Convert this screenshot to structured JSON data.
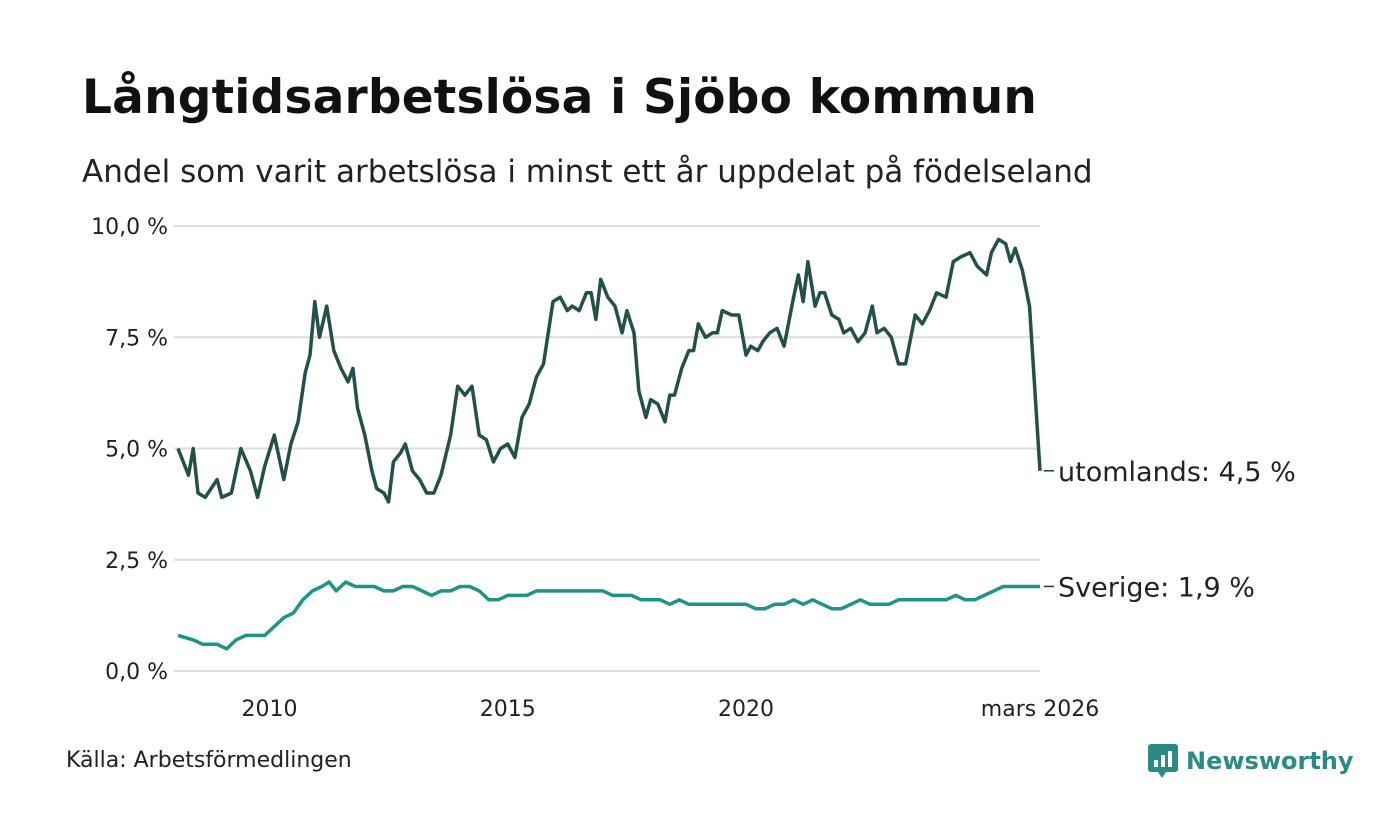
{
  "title": "Långtidsarbetslösa i Sjöbo kommun",
  "subtitle": "Andel som varit arbetslösa i minst ett år uppdelat på födelseland",
  "source": "Källa: Arbetsförmedlingen",
  "brand": "Newsworthy",
  "colors": {
    "utomlands": "#24504a",
    "sverige": "#1e9487",
    "grid": "#dcdcdc",
    "brand": "#2b8a83"
  },
  "chart_data": {
    "type": "line",
    "title": "Långtidsarbetslösa i Sjöbo kommun",
    "ylim": [
      0,
      10
    ],
    "yticks": [
      {
        "value": 10,
        "label": "10,0 %"
      },
      {
        "value": 7.5,
        "label": "7,5 %"
      },
      {
        "value": 5,
        "label": "5,0 %"
      },
      {
        "value": 2.5,
        "label": "2,5 %"
      },
      {
        "value": 0,
        "label": "0,0 %"
      }
    ],
    "xlim": [
      2008.08,
      2026.17
    ],
    "xticks": [
      {
        "value": 2010,
        "label": "2010"
      },
      {
        "value": 2015,
        "label": "2015"
      },
      {
        "value": 2020,
        "label": "2020"
      },
      {
        "value": 2026.17,
        "label": "mars 2026"
      }
    ],
    "grid": true,
    "series": [
      {
        "name": "utomlands",
        "end_label": "utomlands: 4,5 %",
        "points": [
          [
            2008.08,
            5.0
          ],
          [
            2008.3,
            4.4
          ],
          [
            2008.4,
            5.0
          ],
          [
            2008.5,
            4.0
          ],
          [
            2008.65,
            3.9
          ],
          [
            2008.9,
            4.3
          ],
          [
            2009.0,
            3.9
          ],
          [
            2009.2,
            4.0
          ],
          [
            2009.4,
            5.0
          ],
          [
            2009.6,
            4.5
          ],
          [
            2009.75,
            3.9
          ],
          [
            2009.9,
            4.6
          ],
          [
            2010.1,
            5.3
          ],
          [
            2010.3,
            4.3
          ],
          [
            2010.45,
            5.1
          ],
          [
            2010.6,
            5.6
          ],
          [
            2010.75,
            6.7
          ],
          [
            2010.85,
            7.1
          ],
          [
            2010.95,
            8.3
          ],
          [
            2011.05,
            7.5
          ],
          [
            2011.2,
            8.2
          ],
          [
            2011.35,
            7.2
          ],
          [
            2011.5,
            6.8
          ],
          [
            2011.65,
            6.5
          ],
          [
            2011.75,
            6.8
          ],
          [
            2011.85,
            5.9
          ],
          [
            2012.0,
            5.3
          ],
          [
            2012.15,
            4.5
          ],
          [
            2012.25,
            4.1
          ],
          [
            2012.4,
            4.0
          ],
          [
            2012.5,
            3.8
          ],
          [
            2012.6,
            4.7
          ],
          [
            2012.75,
            4.9
          ],
          [
            2012.85,
            5.1
          ],
          [
            2013.0,
            4.5
          ],
          [
            2013.15,
            4.3
          ],
          [
            2013.3,
            4.0
          ],
          [
            2013.45,
            4.0
          ],
          [
            2013.6,
            4.4
          ],
          [
            2013.8,
            5.3
          ],
          [
            2013.95,
            6.4
          ],
          [
            2014.1,
            6.2
          ],
          [
            2014.25,
            6.4
          ],
          [
            2014.4,
            5.3
          ],
          [
            2014.55,
            5.2
          ],
          [
            2014.7,
            4.7
          ],
          [
            2014.85,
            5.0
          ],
          [
            2015.0,
            5.1
          ],
          [
            2015.15,
            4.8
          ],
          [
            2015.3,
            5.7
          ],
          [
            2015.45,
            6.0
          ],
          [
            2015.6,
            6.6
          ],
          [
            2015.75,
            6.9
          ],
          [
            2015.95,
            8.3
          ],
          [
            2016.1,
            8.4
          ],
          [
            2016.25,
            8.1
          ],
          [
            2016.35,
            8.2
          ],
          [
            2016.5,
            8.1
          ],
          [
            2016.65,
            8.5
          ],
          [
            2016.75,
            8.5
          ],
          [
            2016.85,
            7.9
          ],
          [
            2016.95,
            8.8
          ],
          [
            2017.1,
            8.4
          ],
          [
            2017.25,
            8.2
          ],
          [
            2017.4,
            7.6
          ],
          [
            2017.5,
            8.1
          ],
          [
            2017.65,
            7.6
          ],
          [
            2017.75,
            6.3
          ],
          [
            2017.9,
            5.7
          ],
          [
            2018.0,
            6.1
          ],
          [
            2018.15,
            6.0
          ],
          [
            2018.3,
            5.6
          ],
          [
            2018.4,
            6.2
          ],
          [
            2018.5,
            6.2
          ],
          [
            2018.65,
            6.8
          ],
          [
            2018.8,
            7.2
          ],
          [
            2018.9,
            7.2
          ],
          [
            2019.0,
            7.8
          ],
          [
            2019.15,
            7.5
          ],
          [
            2019.3,
            7.6
          ],
          [
            2019.4,
            7.6
          ],
          [
            2019.5,
            8.1
          ],
          [
            2019.7,
            8.0
          ],
          [
            2019.85,
            8.0
          ],
          [
            2020.0,
            7.1
          ],
          [
            2020.1,
            7.3
          ],
          [
            2020.25,
            7.2
          ],
          [
            2020.35,
            7.4
          ],
          [
            2020.5,
            7.6
          ],
          [
            2020.65,
            7.7
          ],
          [
            2020.8,
            7.3
          ],
          [
            2021.0,
            8.4
          ],
          [
            2021.1,
            8.9
          ],
          [
            2021.2,
            8.3
          ],
          [
            2021.3,
            9.2
          ],
          [
            2021.45,
            8.2
          ],
          [
            2021.55,
            8.5
          ],
          [
            2021.65,
            8.5
          ],
          [
            2021.8,
            8.0
          ],
          [
            2021.95,
            7.9
          ],
          [
            2022.05,
            7.6
          ],
          [
            2022.2,
            7.7
          ],
          [
            2022.35,
            7.4
          ],
          [
            2022.5,
            7.6
          ],
          [
            2022.65,
            8.2
          ],
          [
            2022.75,
            7.6
          ],
          [
            2022.9,
            7.7
          ],
          [
            2023.05,
            7.5
          ],
          [
            2023.2,
            6.9
          ],
          [
            2023.35,
            6.9
          ],
          [
            2023.55,
            8.0
          ],
          [
            2023.7,
            7.8
          ],
          [
            2023.85,
            8.1
          ],
          [
            2024.0,
            8.5
          ],
          [
            2024.2,
            8.4
          ],
          [
            2024.35,
            9.2
          ],
          [
            2024.5,
            9.3
          ],
          [
            2024.7,
            9.4
          ],
          [
            2024.85,
            9.1
          ],
          [
            2025.05,
            8.9
          ],
          [
            2025.15,
            9.4
          ],
          [
            2025.3,
            9.7
          ],
          [
            2025.45,
            9.6
          ],
          [
            2025.55,
            9.2
          ],
          [
            2025.65,
            9.5
          ],
          [
            2025.8,
            9.0
          ],
          [
            2025.95,
            8.2
          ],
          [
            2026.17,
            4.5
          ]
        ]
      },
      {
        "name": "sverige",
        "end_label": "Sverige: 1,9 %",
        "points": [
          [
            2008.08,
            0.8
          ],
          [
            2008.4,
            0.7
          ],
          [
            2008.6,
            0.6
          ],
          [
            2008.9,
            0.6
          ],
          [
            2009.1,
            0.5
          ],
          [
            2009.3,
            0.7
          ],
          [
            2009.5,
            0.8
          ],
          [
            2009.7,
            0.8
          ],
          [
            2009.9,
            0.8
          ],
          [
            2010.1,
            1.0
          ],
          [
            2010.3,
            1.2
          ],
          [
            2010.5,
            1.3
          ],
          [
            2010.7,
            1.6
          ],
          [
            2010.9,
            1.8
          ],
          [
            2011.1,
            1.9
          ],
          [
            2011.25,
            2.0
          ],
          [
            2011.4,
            1.8
          ],
          [
            2011.6,
            2.0
          ],
          [
            2011.8,
            1.9
          ],
          [
            2012.0,
            1.9
          ],
          [
            2012.2,
            1.9
          ],
          [
            2012.4,
            1.8
          ],
          [
            2012.6,
            1.8
          ],
          [
            2012.8,
            1.9
          ],
          [
            2013.0,
            1.9
          ],
          [
            2013.2,
            1.8
          ],
          [
            2013.4,
            1.7
          ],
          [
            2013.6,
            1.8
          ],
          [
            2013.8,
            1.8
          ],
          [
            2014.0,
            1.9
          ],
          [
            2014.2,
            1.9
          ],
          [
            2014.4,
            1.8
          ],
          [
            2014.6,
            1.6
          ],
          [
            2014.8,
            1.6
          ],
          [
            2015.0,
            1.7
          ],
          [
            2015.2,
            1.7
          ],
          [
            2015.4,
            1.7
          ],
          [
            2015.6,
            1.8
          ],
          [
            2015.8,
            1.8
          ],
          [
            2016.0,
            1.8
          ],
          [
            2016.2,
            1.8
          ],
          [
            2016.4,
            1.8
          ],
          [
            2016.6,
            1.8
          ],
          [
            2016.8,
            1.8
          ],
          [
            2017.0,
            1.8
          ],
          [
            2017.2,
            1.7
          ],
          [
            2017.4,
            1.7
          ],
          [
            2017.6,
            1.7
          ],
          [
            2017.8,
            1.6
          ],
          [
            2018.0,
            1.6
          ],
          [
            2018.2,
            1.6
          ],
          [
            2018.4,
            1.5
          ],
          [
            2018.6,
            1.6
          ],
          [
            2018.8,
            1.5
          ],
          [
            2019.0,
            1.5
          ],
          [
            2019.2,
            1.5
          ],
          [
            2019.4,
            1.5
          ],
          [
            2019.6,
            1.5
          ],
          [
            2019.8,
            1.5
          ],
          [
            2020.0,
            1.5
          ],
          [
            2020.2,
            1.4
          ],
          [
            2020.4,
            1.4
          ],
          [
            2020.6,
            1.5
          ],
          [
            2020.8,
            1.5
          ],
          [
            2021.0,
            1.6
          ],
          [
            2021.2,
            1.5
          ],
          [
            2021.4,
            1.6
          ],
          [
            2021.6,
            1.5
          ],
          [
            2021.8,
            1.4
          ],
          [
            2022.0,
            1.4
          ],
          [
            2022.2,
            1.5
          ],
          [
            2022.4,
            1.6
          ],
          [
            2022.6,
            1.5
          ],
          [
            2022.8,
            1.5
          ],
          [
            2023.0,
            1.5
          ],
          [
            2023.2,
            1.6
          ],
          [
            2023.4,
            1.6
          ],
          [
            2023.6,
            1.6
          ],
          [
            2023.8,
            1.6
          ],
          [
            2024.0,
            1.6
          ],
          [
            2024.2,
            1.6
          ],
          [
            2024.4,
            1.7
          ],
          [
            2024.6,
            1.6
          ],
          [
            2024.8,
            1.6
          ],
          [
            2025.0,
            1.7
          ],
          [
            2025.2,
            1.8
          ],
          [
            2025.4,
            1.9
          ],
          [
            2025.6,
            1.9
          ],
          [
            2025.8,
            1.9
          ],
          [
            2026.17,
            1.9
          ]
        ]
      }
    ]
  }
}
